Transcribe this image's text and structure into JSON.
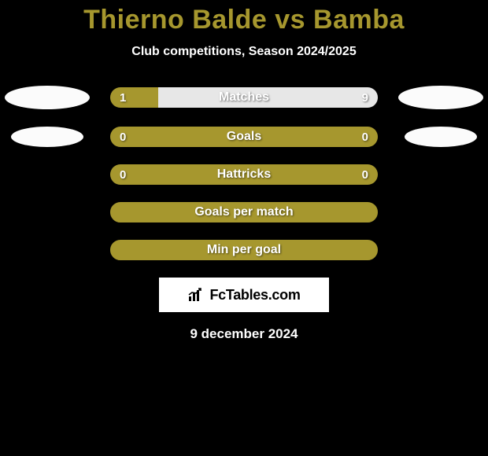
{
  "header": {
    "title": "Thierno Balde vs Bamba",
    "title_color": "#a6972e",
    "subtitle": "Club competitions, Season 2024/2025"
  },
  "colors": {
    "accent": "#a6972e",
    "neutral": "#e7e7e7",
    "bar_border": "#a6972e",
    "white": "#ffffff"
  },
  "stats": [
    {
      "label": "Matches",
      "left_value": "1",
      "right_value": "9",
      "left_fill_pct": 18,
      "right_fill_pct": 82,
      "left_fill_color": "#a6972e",
      "right_fill_color": "#e7e7e7",
      "show_left_ellipse": "big",
      "show_right_ellipse": "big",
      "has_values": true
    },
    {
      "label": "Goals",
      "left_value": "0",
      "right_value": "0",
      "left_fill_pct": 0,
      "right_fill_pct": 100,
      "left_fill_color": "#a6972e",
      "right_fill_color": "#a6972e",
      "show_left_ellipse": "small",
      "show_right_ellipse": "small",
      "has_values": true
    },
    {
      "label": "Hattricks",
      "left_value": "0",
      "right_value": "0",
      "left_fill_pct": 0,
      "right_fill_pct": 100,
      "left_fill_color": "#a6972e",
      "right_fill_color": "#a6972e",
      "show_left_ellipse": "none",
      "show_right_ellipse": "none",
      "has_values": true
    },
    {
      "label": "Goals per match",
      "left_value": "",
      "right_value": "",
      "left_fill_pct": 0,
      "right_fill_pct": 0,
      "left_fill_color": "#a6972e",
      "right_fill_color": "#a6972e",
      "show_left_ellipse": "none",
      "show_right_ellipse": "none",
      "has_values": false,
      "empty": true
    },
    {
      "label": "Min per goal",
      "left_value": "",
      "right_value": "",
      "left_fill_pct": 0,
      "right_fill_pct": 0,
      "left_fill_color": "#a6972e",
      "right_fill_color": "#a6972e",
      "show_left_ellipse": "none",
      "show_right_ellipse": "none",
      "has_values": false,
      "empty": true
    }
  ],
  "badge": {
    "text": "FcTables.com"
  },
  "date": "9 december 2024"
}
